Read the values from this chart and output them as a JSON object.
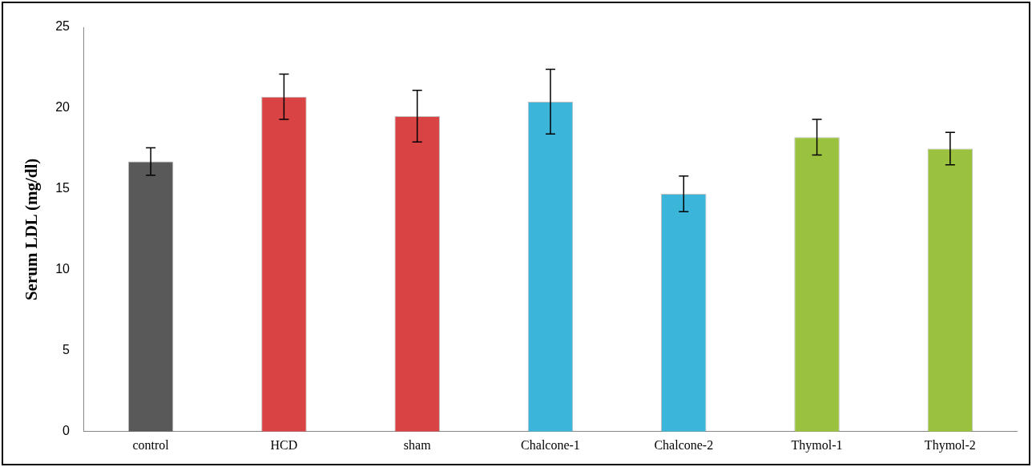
{
  "chart_data": {
    "type": "bar",
    "ylabel": "Serum LDL (mg/dl)",
    "categories": [
      "control",
      "HCD",
      "sham",
      "Chalcone-1",
      "Chalcone-2",
      "Thymol-1",
      "Thymol-2"
    ],
    "values": [
      16.7,
      20.7,
      19.5,
      20.4,
      14.7,
      18.2,
      17.5
    ],
    "errors": [
      0.85,
      1.4,
      1.6,
      2.0,
      1.1,
      1.1,
      1.0
    ],
    "colors": [
      "#595959",
      "#d94343",
      "#d94343",
      "#3bb5da",
      "#3bb5da",
      "#9bc23f",
      "#9bc23f"
    ],
    "ylim": [
      0,
      25
    ],
    "yticks": [
      0,
      5,
      10,
      15,
      20,
      25
    ],
    "grid": false,
    "legend": false
  }
}
